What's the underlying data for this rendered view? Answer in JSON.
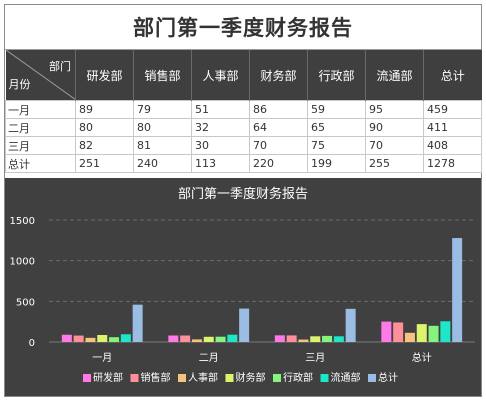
{
  "report": {
    "title": "部门第一季度财务报告",
    "corner_top": "部门",
    "corner_bottom": "月份",
    "columns": [
      "研发部",
      "销售部",
      "人事部",
      "财务部",
      "行政部",
      "流通部",
      "总计"
    ],
    "rows": [
      {
        "label": "一月",
        "cells": [
          "89",
          "79",
          "51",
          "86",
          "59",
          "95",
          "459"
        ]
      },
      {
        "label": "二月",
        "cells": [
          "80",
          "80",
          "32",
          "64",
          "65",
          "90",
          "411"
        ]
      },
      {
        "label": "三月",
        "cells": [
          "82",
          "81",
          "30",
          "70",
          "75",
          "70",
          "408"
        ]
      },
      {
        "label": "总计",
        "cells": [
          "251",
          "240",
          "113",
          "220",
          "199",
          "255",
          "1278"
        ]
      }
    ]
  },
  "chart_data": {
    "type": "bar",
    "title": "部门第一季度财务报告",
    "categories": [
      "一月",
      "二月",
      "三月",
      "总计"
    ],
    "series": [
      {
        "name": "研发部",
        "color": "#ff7ae6",
        "values": [
          89,
          80,
          82,
          251
        ]
      },
      {
        "name": "销售部",
        "color": "#ff8f99",
        "values": [
          79,
          80,
          81,
          240
        ]
      },
      {
        "name": "人事部",
        "color": "#f7c27d",
        "values": [
          51,
          32,
          30,
          113
        ]
      },
      {
        "name": "财务部",
        "color": "#dcf36d",
        "values": [
          86,
          64,
          70,
          220
        ]
      },
      {
        "name": "行政部",
        "color": "#87f37f",
        "values": [
          59,
          65,
          75,
          199
        ]
      },
      {
        "name": "流通部",
        "color": "#1ee6c8",
        "values": [
          95,
          90,
          70,
          255
        ]
      },
      {
        "name": "总计",
        "color": "#9bbde3",
        "values": [
          459,
          411,
          408,
          1278
        ]
      }
    ],
    "yticks": [
      "0",
      "500",
      "1000",
      "1500"
    ],
    "ylim": [
      0,
      1500
    ],
    "grid": true,
    "legend": "bottom"
  }
}
